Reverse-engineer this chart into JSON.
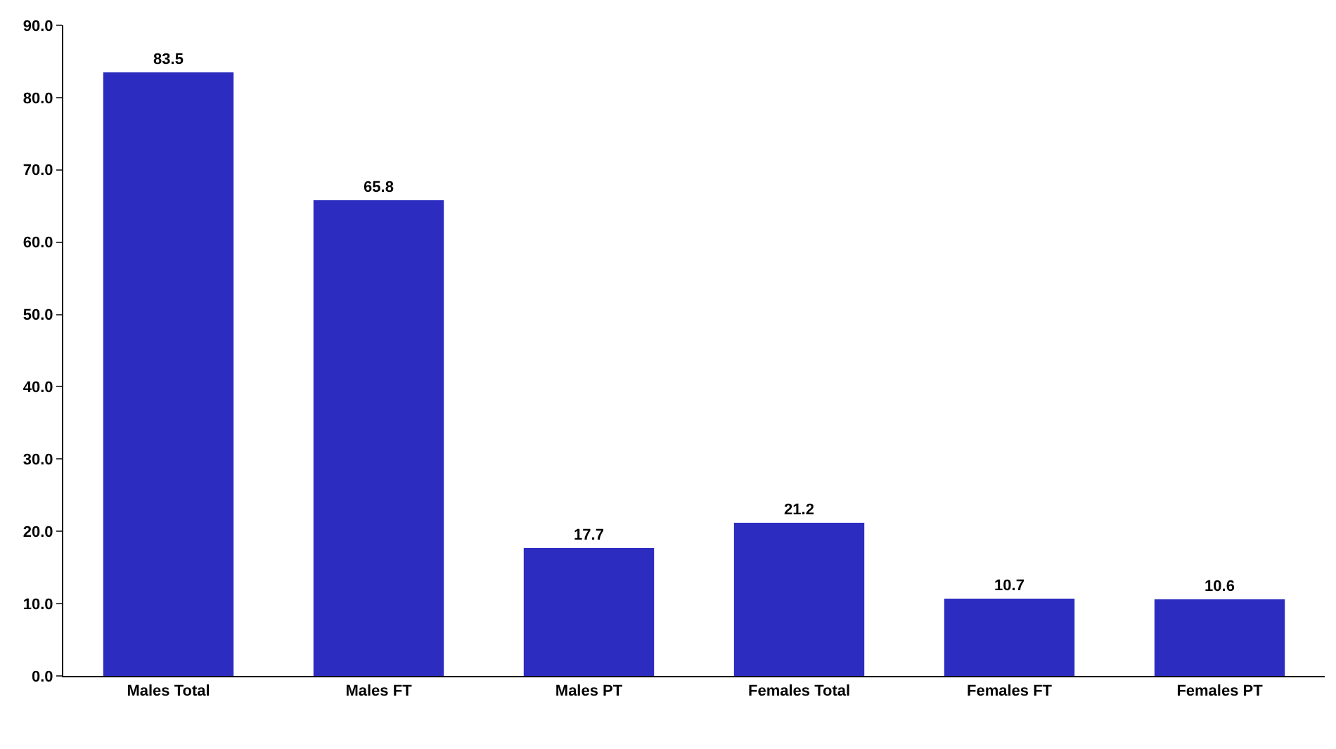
{
  "chart_data": {
    "type": "bar",
    "categories": [
      "Males Total",
      "Males FT",
      "Males PT",
      "Females Total",
      "Females FT",
      "Females PT"
    ],
    "values": [
      83.5,
      65.8,
      17.7,
      21.2,
      10.7,
      10.6
    ],
    "color": "#2c2cc0",
    "data_labels": true,
    "legend": false,
    "ylim": [
      0,
      90
    ],
    "yticks": [
      {
        "value": 0,
        "label": "0.0"
      },
      {
        "value": 10,
        "label": "10.0"
      },
      {
        "value": 20,
        "label": "20.0"
      },
      {
        "value": 30,
        "label": "30.0"
      },
      {
        "value": 40,
        "label": "40.0"
      },
      {
        "value": 50,
        "label": "50.0"
      },
      {
        "value": 60,
        "label": "60.0"
      },
      {
        "value": 70,
        "label": "70.0"
      },
      {
        "value": 80,
        "label": "80.0"
      },
      {
        "value": 90,
        "label": "90.0"
      }
    ]
  }
}
